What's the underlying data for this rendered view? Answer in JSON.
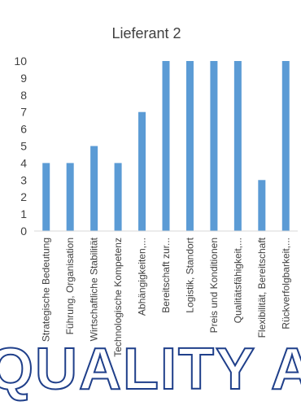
{
  "chart_data": {
    "type": "bar",
    "title": "Lieferant 2",
    "categories": [
      "Strategische Bedeutung",
      "Führung, Organisation",
      "Wirtschaftliche Stabilität",
      "Technologische Kompetenz",
      "Abhängigkeiten,...",
      "Bereitschaft zur...",
      "Logistik, Standort",
      "Preis und Konditionen",
      "Qualitätsfähigkeit,...",
      "Flexibilität, Bereitschaft",
      "Rückverfolgbarkeit,..."
    ],
    "values": [
      4,
      4,
      5,
      4,
      7,
      10,
      10,
      10,
      10,
      3,
      10
    ],
    "ylim": [
      0,
      10
    ],
    "yticks": [
      "0",
      "1",
      "2",
      "3",
      "4",
      "5",
      "6",
      "7",
      "8",
      "9",
      "10"
    ],
    "grid": false,
    "bar_color": "#5b9bd5"
  },
  "watermark": {
    "text": "QUALITY A"
  }
}
